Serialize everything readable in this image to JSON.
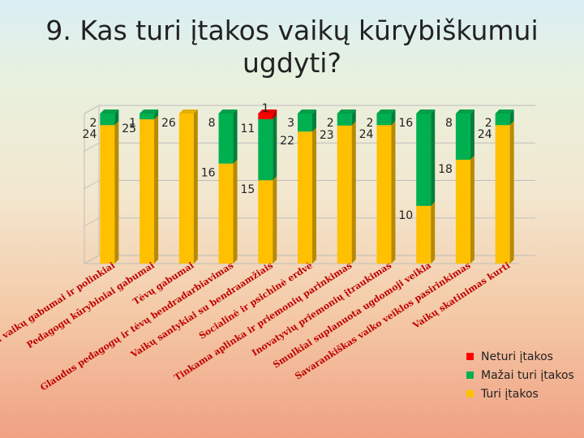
{
  "chart_data": {
    "type": "bar",
    "stacked": true,
    "percent_stacked": true,
    "title": "9. Kas turi įtakos vaikų kūrybiškumui ugdyti?",
    "categories": [
      "Įgimti vaikų gabumai ir polinkiai",
      "Pedagogų kūrybiniai gabumai",
      "Tėvų gabumai",
      "Glaudus pedagogų ir tėvų bendradarbiavimas",
      "Vaikų santykiai su bendraamžiais",
      "Socialinė ir psichinė erdvė",
      "Tinkama aplinka ir priemonių parinkimas",
      "Inovatyvių priemonių įtraukimas",
      "Smulkiai suplanuota ugdomoji veikla",
      "Savarankiškas vaiko veiklos pasirinkimas",
      "Vaikų skatinimas kurti"
    ],
    "series": [
      {
        "name": "Turi įtakos",
        "color": "#ffc000",
        "values": [
          24,
          25,
          26,
          16,
          15,
          22,
          23,
          24,
          10,
          18,
          24
        ]
      },
      {
        "name": "Mažai turi įtakos",
        "color": "#00b050",
        "values": [
          2,
          1,
          null,
          8,
          11,
          3,
          2,
          2,
          16,
          8,
          2
        ]
      },
      {
        "name": "Neturi įtakos",
        "color": "#ff0000",
        "values": [
          null,
          null,
          null,
          null,
          1,
          null,
          null,
          null,
          null,
          null,
          null
        ]
      }
    ],
    "data_labels": [
      [
        "24",
        "2",
        ""
      ],
      [
        "25",
        "1",
        ""
      ],
      [
        "26",
        "",
        ""
      ],
      [
        "16",
        "8",
        ""
      ],
      [
        "15",
        "11",
        "1"
      ],
      [
        "22",
        "3",
        ""
      ],
      [
        "23",
        "2",
        ""
      ],
      [
        "24",
        "2",
        ""
      ],
      [
        "10",
        "16",
        ""
      ],
      [
        "18",
        "8",
        ""
      ],
      [
        "24",
        "2",
        ""
      ]
    ],
    "legend_position": "bottom-right",
    "grid": true
  }
}
